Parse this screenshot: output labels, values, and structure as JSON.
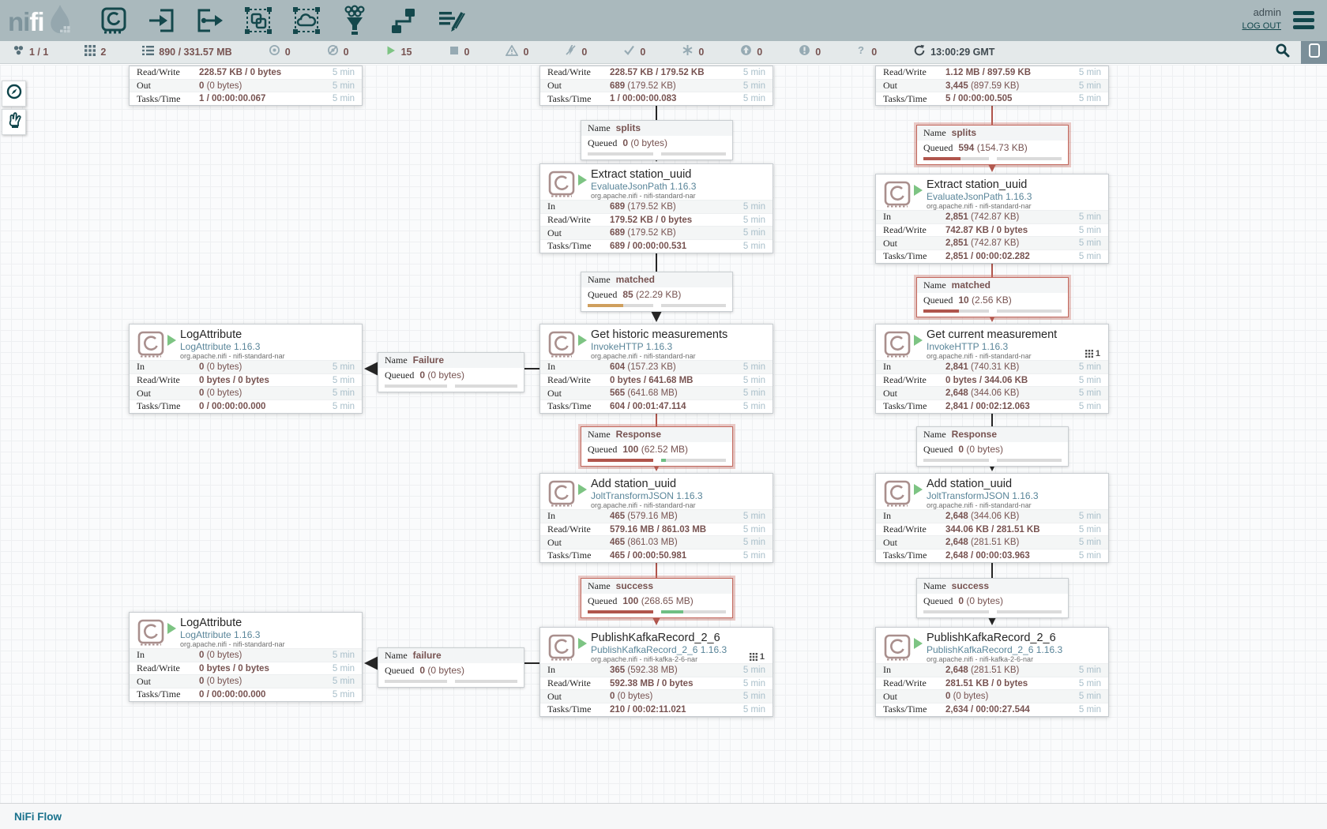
{
  "header": {
    "logo_ni": "ni",
    "logo_fi": "fi",
    "user": "admin",
    "logout": "LOG OUT",
    "toolbar_icons": [
      "processor-icon",
      "input-port-icon",
      "output-port-icon",
      "process-group-icon",
      "remote-process-group-icon",
      "funnel-icon",
      "template-icon",
      "label-icon"
    ]
  },
  "statusbar": {
    "items": [
      {
        "icon": "cluster-icon",
        "value": "1 / 1"
      },
      {
        "icon": "threads-icon",
        "value": "2"
      },
      {
        "icon": "queued-icon",
        "value": "890 / 331.57 MB"
      },
      {
        "icon": "transmitting-icon",
        "value": "0"
      },
      {
        "icon": "not-transmitting-icon",
        "value": "0"
      },
      {
        "icon": "running-icon",
        "value": "15"
      },
      {
        "icon": "stopped-icon",
        "value": "0"
      },
      {
        "icon": "invalid-icon",
        "value": "0"
      },
      {
        "icon": "disabled-icon",
        "value": "0"
      },
      {
        "icon": "up-to-date-icon",
        "value": "0"
      },
      {
        "icon": "locally-modified-icon",
        "value": "0"
      },
      {
        "icon": "stale-icon",
        "value": "0"
      },
      {
        "icon": "locally-modified-stale-icon",
        "value": "0"
      },
      {
        "icon": "sync-failure-icon",
        "value": "0"
      }
    ],
    "time": "13:00:29 GMT"
  },
  "labels": {
    "period": "5 min"
  },
  "colors": {
    "header_bg": "#aab9bd",
    "toolbar_icon": "#14484c",
    "alert_red": "#b0554c",
    "run_green": "#7dc483",
    "value_maroon": "#775351",
    "type_blue": "#598599",
    "bar_amber": "#cf9f5d",
    "bar_green": "#6fbf84"
  },
  "partials": [
    {
      "rows": [
        {
          "label": "Read/Write",
          "bold": "228.57 KB / 0 bytes",
          "rest": ""
        },
        {
          "label": "Out",
          "bold": "0",
          "rest": " (0 bytes)"
        },
        {
          "label": "Tasks/Time",
          "bold": "1 / 00:00:00.067",
          "rest": ""
        }
      ]
    },
    {
      "rows": [
        {
          "label": "Read/Write",
          "bold": "228.57 KB / 179.52 KB",
          "rest": ""
        },
        {
          "label": "Out",
          "bold": "689",
          "rest": " (179.52 KB)"
        },
        {
          "label": "Tasks/Time",
          "bold": "1 / 00:00:00.083",
          "rest": ""
        }
      ]
    },
    {
      "rows": [
        {
          "label": "Read/Write",
          "bold": "1.12 MB / 897.59 KB",
          "rest": ""
        },
        {
          "label": "Out",
          "bold": "3,445",
          "rest": " (897.59 KB)"
        },
        {
          "label": "Tasks/Time",
          "bold": "5 / 00:00:00.505",
          "rest": ""
        }
      ]
    }
  ],
  "processors": [
    {
      "title": "Extract station_uuid",
      "type": "EvaluateJsonPath 1.16.3",
      "bundle": "org.apache.nifi - nifi-standard-nar",
      "rows": [
        {
          "label": "In",
          "bold": "689",
          "rest": " (179.52 KB)"
        },
        {
          "label": "Read/Write",
          "bold": "179.52 KB / 0 bytes",
          "rest": ""
        },
        {
          "label": "Out",
          "bold": "689",
          "rest": " (179.52 KB)"
        },
        {
          "label": "Tasks/Time",
          "bold": "689 / 00:00:00.531",
          "rest": ""
        }
      ]
    },
    {
      "title": "Get historic measurements",
      "type": "InvokeHTTP 1.16.3",
      "bundle": "org.apache.nifi - nifi-standard-nar",
      "rows": [
        {
          "label": "In",
          "bold": "604",
          "rest": " (157.23 KB)"
        },
        {
          "label": "Read/Write",
          "bold": "0 bytes / 641.68 MB",
          "rest": ""
        },
        {
          "label": "Out",
          "bold": "565",
          "rest": " (641.68 MB)"
        },
        {
          "label": "Tasks/Time",
          "bold": "604 / 00:01:47.114",
          "rest": ""
        }
      ]
    },
    {
      "title": "Add station_uuid",
      "type": "JoltTransformJSON 1.16.3",
      "bundle": "org.apache.nifi - nifi-standard-nar",
      "rows": [
        {
          "label": "In",
          "bold": "465",
          "rest": " (579.16 MB)"
        },
        {
          "label": "Read/Write",
          "bold": "579.16 MB / 861.03 MB",
          "rest": ""
        },
        {
          "label": "Out",
          "bold": "465",
          "rest": " (861.03 MB)"
        },
        {
          "label": "Tasks/Time",
          "bold": "465 / 00:00:50.981",
          "rest": ""
        }
      ]
    },
    {
      "title": "PublishKafkaRecord_2_6",
      "type": "PublishKafkaRecord_2_6 1.16.3",
      "bundle": "org.apache.nifi - nifi-kafka-2-6-nar",
      "badge": "1",
      "rows": [
        {
          "label": "In",
          "bold": "365",
          "rest": " (592.38 MB)"
        },
        {
          "label": "Read/Write",
          "bold": "592.38 MB / 0 bytes",
          "rest": ""
        },
        {
          "label": "Out",
          "bold": "0",
          "rest": " (0 bytes)"
        },
        {
          "label": "Tasks/Time",
          "bold": "210 / 00:02:11.021",
          "rest": ""
        }
      ]
    },
    {
      "title": "LogAttribute",
      "type": "LogAttribute 1.16.3",
      "bundle": "org.apache.nifi - nifi-standard-nar",
      "rows": [
        {
          "label": "In",
          "bold": "0",
          "rest": " (0 bytes)"
        },
        {
          "label": "Read/Write",
          "bold": "0 bytes / 0 bytes",
          "rest": ""
        },
        {
          "label": "Out",
          "bold": "0",
          "rest": " (0 bytes)"
        },
        {
          "label": "Tasks/Time",
          "bold": "0 / 00:00:00.000",
          "rest": ""
        }
      ]
    },
    {
      "title": "LogAttribute",
      "type": "LogAttribute 1.16.3",
      "bundle": "org.apache.nifi - nifi-standard-nar",
      "rows": [
        {
          "label": "In",
          "bold": "0",
          "rest": " (0 bytes)"
        },
        {
          "label": "Read/Write",
          "bold": "0 bytes / 0 bytes",
          "rest": ""
        },
        {
          "label": "Out",
          "bold": "0",
          "rest": " (0 bytes)"
        },
        {
          "label": "Tasks/Time",
          "bold": "0 / 00:00:00.000",
          "rest": ""
        }
      ]
    },
    {
      "title": "Extract station_uuid",
      "type": "EvaluateJsonPath 1.16.3",
      "bundle": "org.apache.nifi - nifi-standard-nar",
      "rows": [
        {
          "label": "In",
          "bold": "2,851",
          "rest": " (742.87 KB)"
        },
        {
          "label": "Read/Write",
          "bold": "742.87 KB / 0 bytes",
          "rest": ""
        },
        {
          "label": "Out",
          "bold": "2,851",
          "rest": " (742.87 KB)"
        },
        {
          "label": "Tasks/Time",
          "bold": "2,851 / 00:00:02.282",
          "rest": ""
        }
      ]
    },
    {
      "title": "Get current measurement",
      "type": "InvokeHTTP 1.16.3",
      "bundle": "org.apache.nifi - nifi-standard-nar",
      "badge": "1",
      "rows": [
        {
          "label": "In",
          "bold": "2,841",
          "rest": " (740.31 KB)"
        },
        {
          "label": "Read/Write",
          "bold": "0 bytes / 344.06 KB",
          "rest": ""
        },
        {
          "label": "Out",
          "bold": "2,648",
          "rest": " (344.06 KB)"
        },
        {
          "label": "Tasks/Time",
          "bold": "2,841 / 00:02:12.063",
          "rest": ""
        }
      ]
    },
    {
      "title": "Add station_uuid",
      "type": "JoltTransformJSON 1.16.3",
      "bundle": "org.apache.nifi - nifi-standard-nar",
      "rows": [
        {
          "label": "In",
          "bold": "2,648",
          "rest": " (344.06 KB)"
        },
        {
          "label": "Read/Write",
          "bold": "344.06 KB / 281.51 KB",
          "rest": ""
        },
        {
          "label": "Out",
          "bold": "2,648",
          "rest": " (281.51 KB)"
        },
        {
          "label": "Tasks/Time",
          "bold": "2,648 / 00:00:03.963",
          "rest": ""
        }
      ]
    },
    {
      "title": "PublishKafkaRecord_2_6",
      "type": "PublishKafkaRecord_2_6 1.16.3",
      "bundle": "org.apache.nifi - nifi-kafka-2-6-nar",
      "rows": [
        {
          "label": "In",
          "bold": "2,648",
          "rest": " (281.51 KB)"
        },
        {
          "label": "Read/Write",
          "bold": "281.51 KB / 0 bytes",
          "rest": ""
        },
        {
          "label": "Out",
          "bold": "0",
          "rest": " (0 bytes)"
        },
        {
          "label": "Tasks/Time",
          "bold": "2,634 / 00:00:27.544",
          "rest": ""
        }
      ]
    }
  ],
  "connections": [
    {
      "name_label": "Name",
      "queued_label": "Queued",
      "name": "splits",
      "queued_bold": "0",
      "queued_rest": " (0 bytes)",
      "count_pct": 0,
      "count_color": "#dbdbdb",
      "size_pct": 0,
      "size_color": "#dbdbdb"
    },
    {
      "name_label": "Name",
      "queued_label": "Queued",
      "name": "matched",
      "queued_bold": "85",
      "queued_rest": " (22.29 KB)",
      "count_pct": 55,
      "count_color": "#cf9f5d",
      "size_pct": 0,
      "size_color": "#dbdbdb"
    },
    {
      "name_label": "Name",
      "queued_label": "Queued",
      "name": "Response",
      "queued_bold": "100",
      "queued_rest": " (62.52 MB)",
      "count_pct": 100,
      "count_color": "#b0554c",
      "size_pct": 8,
      "size_color": "#6fbf84"
    },
    {
      "name_label": "Name",
      "queued_label": "Queued",
      "name": "success",
      "queued_bold": "100",
      "queued_rest": " (268.65 MB)",
      "count_pct": 100,
      "count_color": "#b0554c",
      "size_pct": 35,
      "size_color": "#6fbf84"
    },
    {
      "name_label": "Name",
      "queued_label": "Queued",
      "name": "Failure",
      "queued_bold": "0",
      "queued_rest": " (0 bytes)",
      "count_pct": 0,
      "count_color": "#dbdbdb",
      "size_pct": 0,
      "size_color": "#dbdbdb"
    },
    {
      "name_label": "Name",
      "queued_label": "Queued",
      "name": "failure",
      "queued_bold": "0",
      "queued_rest": " (0 bytes)",
      "count_pct": 0,
      "count_color": "#dbdbdb",
      "size_pct": 0,
      "size_color": "#dbdbdb"
    },
    {
      "name_label": "Name",
      "queued_label": "Queued",
      "name": "splits",
      "queued_bold": "594",
      "queued_rest": " (154.73 KB)",
      "count_pct": 57,
      "count_color": "#b0554c",
      "size_pct": 0,
      "size_color": "#dbdbdb"
    },
    {
      "name_label": "Name",
      "queued_label": "Queued",
      "name": "matched",
      "queued_bold": "10",
      "queued_rest": " (2.56 KB)",
      "count_pct": 55,
      "count_color": "#b0554c",
      "size_pct": 0,
      "size_color": "#dbdbdb"
    },
    {
      "name_label": "Name",
      "queued_label": "Queued",
      "name": "Response",
      "queued_bold": "0",
      "queued_rest": " (0 bytes)",
      "count_pct": 0,
      "count_color": "#dbdbdb",
      "size_pct": 0,
      "size_color": "#dbdbdb"
    },
    {
      "name_label": "Name",
      "queued_label": "Queued",
      "name": "success",
      "queued_bold": "0",
      "queued_rest": " (0 bytes)",
      "count_pct": 0,
      "count_color": "#dbdbdb",
      "size_pct": 0,
      "size_color": "#dbdbdb"
    }
  ],
  "breadcrumb": "NiFi Flow"
}
